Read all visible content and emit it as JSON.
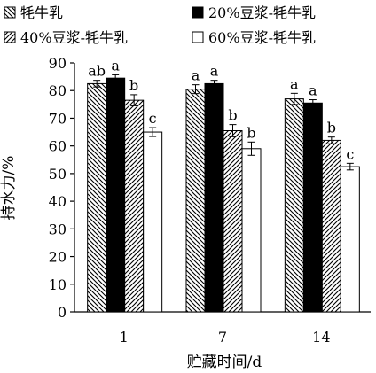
{
  "chart_data": {
    "type": "bar",
    "categories": [
      "1",
      "7",
      "14"
    ],
    "series": [
      {
        "name": "牦牛乳",
        "values": [
          82.5,
          80.5,
          77.0
        ],
        "errors": [
          1.2,
          1.6,
          2.0
        ],
        "letters": [
          "ab",
          "a",
          "a"
        ],
        "pattern": "back-hatch"
      },
      {
        "name": "20%豆浆-牦牛乳",
        "values": [
          84.5,
          82.5,
          75.5
        ],
        "errors": [
          1.2,
          1.2,
          1.2
        ],
        "letters": [
          "a",
          "a",
          "a"
        ],
        "pattern": "solid"
      },
      {
        "name": "40%豆浆-牦牛乳",
        "values": [
          76.5,
          65.5,
          62.0
        ],
        "errors": [
          2.0,
          2.2,
          1.2
        ],
        "letters": [
          "b",
          "b",
          "b"
        ],
        "pattern": "forward-hatch"
      },
      {
        "name": "60%豆浆-牦牛乳",
        "values": [
          65.0,
          59.0,
          52.5
        ],
        "errors": [
          1.6,
          2.4,
          1.2
        ],
        "letters": [
          "c",
          "b",
          "c"
        ],
        "pattern": "white"
      }
    ],
    "xlabel": "贮藏时间/d",
    "ylabel": "持水力/%",
    "ylim": [
      0,
      90
    ],
    "yticks": [
      0,
      10,
      20,
      30,
      40,
      50,
      60,
      70,
      80,
      90
    ],
    "grid": false,
    "legend_position": "top"
  }
}
